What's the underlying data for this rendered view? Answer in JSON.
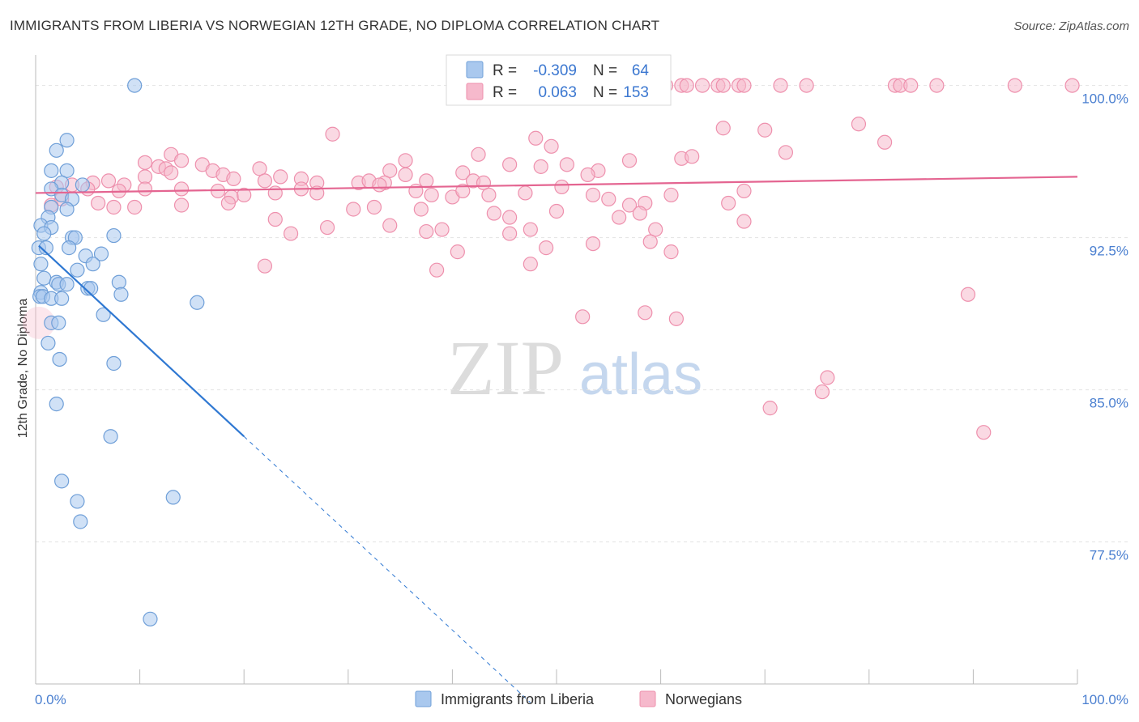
{
  "title": "IMMIGRANTS FROM LIBERIA VS NORWEGIAN 12TH GRADE, NO DIPLOMA CORRELATION CHART",
  "source": "Source: ZipAtlas.com",
  "watermark": {
    "zip": "ZIP",
    "atlas": "atlas"
  },
  "colors": {
    "blue_fill": "#a9c8ee",
    "blue_stroke": "#6f9fd8",
    "blue_line": "#2f78d2",
    "pink_fill": "#f6b9cc",
    "pink_stroke": "#ee90ad",
    "pink_line": "#e46591",
    "tick_label": "#4a7fd0"
  },
  "legend": {
    "blue": {
      "r_label": "R =",
      "r_value": "-0.309",
      "n_label": "N =",
      "n_value": "64"
    },
    "pink": {
      "r_label": "R =",
      "r_value": "0.063",
      "n_label": "N =",
      "n_value": "153"
    }
  },
  "bottom_legend": {
    "blue": "Immigrants from Liberia",
    "pink": "Norwegians"
  },
  "chart_data": {
    "type": "scatter",
    "title": "IMMIGRANTS FROM LIBERIA VS NORWEGIAN 12TH GRADE, NO DIPLOMA CORRELATION CHART",
    "xlabel": "",
    "ylabel": "12th Grade, No Diploma",
    "xlim": [
      0,
      100
    ],
    "ylim": [
      70.5,
      101.5
    ],
    "x_tick_labels": [
      "0.0%",
      "100.0%"
    ],
    "y_ticks": [
      77.5,
      85.0,
      92.5,
      100.0
    ],
    "y_tick_labels": [
      "77.5%",
      "85.0%",
      "92.5%",
      "100.0%"
    ],
    "grid": true,
    "series": [
      {
        "name": "Immigrants from Liberia",
        "r": -0.309,
        "n": 64,
        "trend": {
          "x0": 0.3,
          "y0": 92.1,
          "x1": 20.0,
          "y1": 82.7,
          "dash_to_x": 47.5
        },
        "points": [
          [
            9.5,
            100
          ],
          [
            2.0,
            96.8
          ],
          [
            3.0,
            97.3
          ],
          [
            1.5,
            95.8
          ],
          [
            3.0,
            95.8
          ],
          [
            2.5,
            95.2
          ],
          [
            1.5,
            94.9
          ],
          [
            2.5,
            94.6
          ],
          [
            3.5,
            94.4
          ],
          [
            4.5,
            95.1
          ],
          [
            1.5,
            94.0
          ],
          [
            3.0,
            93.9
          ],
          [
            1.2,
            93.5
          ],
          [
            0.5,
            93.1
          ],
          [
            1.5,
            93.0
          ],
          [
            0.8,
            92.7
          ],
          [
            3.5,
            92.5
          ],
          [
            3.8,
            92.5
          ],
          [
            7.5,
            92.6
          ],
          [
            0.3,
            92.0
          ],
          [
            1.0,
            92.0
          ],
          [
            3.2,
            92.0
          ],
          [
            0.5,
            91.2
          ],
          [
            4.8,
            91.6
          ],
          [
            6.3,
            91.7
          ],
          [
            5.5,
            91.2
          ],
          [
            4.0,
            90.9
          ],
          [
            0.8,
            90.5
          ],
          [
            2.0,
            90.3
          ],
          [
            2.2,
            90.2
          ],
          [
            3.0,
            90.2
          ],
          [
            5.0,
            90.0
          ],
          [
            5.3,
            90.0
          ],
          [
            8.0,
            90.3
          ],
          [
            0.5,
            89.8
          ],
          [
            0.4,
            89.6
          ],
          [
            0.7,
            89.6
          ],
          [
            1.5,
            89.5
          ],
          [
            2.5,
            89.5
          ],
          [
            8.2,
            89.7
          ],
          [
            15.5,
            89.3
          ],
          [
            1.5,
            88.3
          ],
          [
            2.2,
            88.3
          ],
          [
            6.5,
            88.7
          ],
          [
            1.2,
            87.3
          ],
          [
            2.3,
            86.5
          ],
          [
            7.5,
            86.3
          ],
          [
            2.0,
            84.3
          ],
          [
            7.2,
            82.7
          ],
          [
            2.5,
            80.5
          ],
          [
            4.0,
            79.5
          ],
          [
            13.2,
            79.7
          ],
          [
            4.3,
            78.5
          ],
          [
            11.0,
            73.7
          ]
        ]
      },
      {
        "name": "Norwegians",
        "r": 0.063,
        "n": 153,
        "trend": {
          "x0": 0.0,
          "y0": 94.7,
          "x1": 100.0,
          "y1": 95.5
        },
        "points": [
          [
            60.5,
            100
          ],
          [
            62.0,
            100
          ],
          [
            62.5,
            100
          ],
          [
            64.0,
            100
          ],
          [
            65.5,
            100
          ],
          [
            66.0,
            100
          ],
          [
            67.5,
            100
          ],
          [
            68.0,
            100
          ],
          [
            71.5,
            100
          ],
          [
            74.0,
            100
          ],
          [
            82.5,
            100
          ],
          [
            83.0,
            100
          ],
          [
            84.0,
            100
          ],
          [
            86.5,
            100
          ],
          [
            94.0,
            100
          ],
          [
            99.5,
            100
          ],
          [
            28.5,
            97.6
          ],
          [
            66.0,
            97.9
          ],
          [
            70.0,
            97.8
          ],
          [
            79.0,
            98.1
          ],
          [
            81.5,
            97.2
          ],
          [
            48.0,
            97.4
          ],
          [
            49.5,
            97.0
          ],
          [
            42.5,
            96.6
          ],
          [
            35.5,
            96.3
          ],
          [
            13.0,
            96.6
          ],
          [
            14.0,
            96.3
          ],
          [
            10.5,
            96.2
          ],
          [
            11.8,
            96.0
          ],
          [
            16.0,
            96.1
          ],
          [
            48.5,
            96.0
          ],
          [
            51.0,
            96.1
          ],
          [
            57.0,
            96.3
          ],
          [
            62.0,
            96.4
          ],
          [
            63.0,
            96.5
          ],
          [
            72.0,
            96.7
          ],
          [
            12.5,
            95.9
          ],
          [
            17.0,
            95.8
          ],
          [
            21.5,
            95.9
          ],
          [
            34.0,
            95.8
          ],
          [
            35.5,
            95.6
          ],
          [
            41.0,
            95.7
          ],
          [
            45.5,
            96.1
          ],
          [
            54.0,
            95.8
          ],
          [
            10.5,
            95.5
          ],
          [
            13.0,
            95.7
          ],
          [
            18.0,
            95.6
          ],
          [
            19.0,
            95.4
          ],
          [
            22.0,
            95.3
          ],
          [
            23.5,
            95.5
          ],
          [
            25.5,
            95.4
          ],
          [
            27.0,
            95.2
          ],
          [
            7.0,
            95.3
          ],
          [
            8.5,
            95.1
          ],
          [
            5.5,
            95.2
          ],
          [
            5.0,
            94.9
          ],
          [
            2.0,
            95.0
          ],
          [
            3.5,
            95.1
          ],
          [
            31.0,
            95.2
          ],
          [
            32.0,
            95.3
          ],
          [
            33.5,
            95.2
          ],
          [
            37.5,
            95.3
          ],
          [
            42.0,
            95.3
          ],
          [
            43.0,
            95.2
          ],
          [
            53.0,
            95.6
          ],
          [
            8.0,
            94.8
          ],
          [
            10.5,
            94.9
          ],
          [
            14.0,
            94.9
          ],
          [
            17.5,
            94.8
          ],
          [
            18.8,
            94.5
          ],
          [
            20.0,
            94.6
          ],
          [
            23.0,
            94.7
          ],
          [
            25.5,
            94.9
          ],
          [
            27.0,
            94.7
          ],
          [
            33.0,
            95.1
          ],
          [
            36.5,
            94.8
          ],
          [
            38.0,
            94.6
          ],
          [
            40.0,
            94.5
          ],
          [
            41.0,
            94.8
          ],
          [
            43.5,
            94.6
          ],
          [
            47.0,
            94.7
          ],
          [
            50.5,
            95.0
          ],
          [
            53.5,
            94.6
          ],
          [
            55.0,
            94.4
          ],
          [
            57.0,
            94.1
          ],
          [
            58.5,
            94.2
          ],
          [
            61.0,
            94.6
          ],
          [
            66.5,
            94.2
          ],
          [
            68.0,
            94.8
          ],
          [
            1.5,
            94.1
          ],
          [
            2.5,
            94.4
          ],
          [
            6.0,
            94.2
          ],
          [
            7.5,
            94.0
          ],
          [
            9.5,
            94.0
          ],
          [
            14.0,
            94.1
          ],
          [
            18.5,
            94.2
          ],
          [
            30.5,
            93.9
          ],
          [
            32.5,
            94.0
          ],
          [
            37.0,
            93.9
          ],
          [
            44.0,
            93.7
          ],
          [
            45.5,
            93.5
          ],
          [
            50.0,
            93.8
          ],
          [
            56.0,
            93.5
          ],
          [
            58.0,
            93.7
          ],
          [
            23.0,
            93.4
          ],
          [
            28.0,
            93.0
          ],
          [
            34.0,
            93.1
          ],
          [
            39.0,
            92.9
          ],
          [
            47.5,
            92.9
          ],
          [
            59.5,
            92.9
          ],
          [
            68.0,
            93.3
          ],
          [
            24.5,
            92.7
          ],
          [
            37.5,
            92.8
          ],
          [
            59.0,
            92.3
          ],
          [
            45.5,
            92.7
          ],
          [
            49.0,
            92.0
          ],
          [
            53.5,
            92.2
          ],
          [
            61.0,
            91.8
          ],
          [
            40.5,
            91.8
          ],
          [
            38.5,
            90.9
          ],
          [
            47.5,
            91.2
          ],
          [
            22.0,
            91.1
          ],
          [
            89.5,
            89.7
          ],
          [
            58.5,
            88.8
          ],
          [
            52.5,
            88.6
          ],
          [
            61.5,
            88.5
          ],
          [
            76.0,
            85.6
          ],
          [
            75.5,
            84.9
          ],
          [
            70.5,
            84.1
          ],
          [
            91.0,
            82.9
          ]
        ]
      }
    ]
  }
}
